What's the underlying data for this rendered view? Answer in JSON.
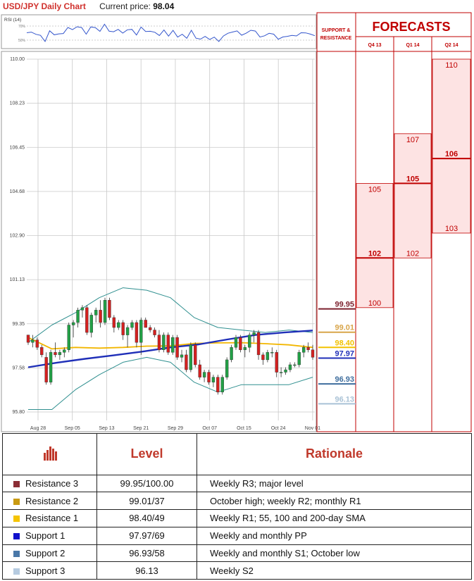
{
  "header": {
    "title": "USD/JPY Daily Chart",
    "price_label": "Current price:",
    "price_value": "98.04"
  },
  "rsi": {
    "label": "RSI (14)",
    "ticks": [
      "70%",
      "50%"
    ]
  },
  "forecast_panel": {
    "support_resistance_label": [
      "SUPPORT &",
      "RESISTANCE"
    ],
    "forecasts_title": "FORECASTS",
    "quarters": [
      "Q4 13",
      "Q1 14",
      "Q2 14"
    ]
  },
  "chart_data": {
    "type": "candlestick",
    "title": "USD/JPY Daily Chart",
    "ylim": [
      95.8,
      110.0
    ],
    "y_ticks": [
      "110.00",
      "108.23",
      "106.45",
      "104.68",
      "102.90",
      "101.13",
      "99.35",
      "97.58",
      "95.80"
    ],
    "x_ticks": [
      "Aug 28",
      "Sep 05",
      "Sep 13",
      "Sep 21",
      "Sep 29",
      "Oct 07",
      "Oct 15",
      "Oct 24",
      "Nov 01"
    ],
    "candles": [
      [
        98.9,
        98.9,
        98.5,
        98.6
      ],
      [
        98.6,
        98.9,
        98.4,
        98.7
      ],
      [
        98.7,
        98.8,
        98.3,
        98.4
      ],
      [
        98.4,
        98.5,
        98.0,
        98.1
      ],
      [
        98.0,
        98.2,
        96.9,
        97.0
      ],
      [
        97.0,
        98.3,
        96.9,
        98.2
      ],
      [
        98.2,
        98.6,
        98.0,
        98.1
      ],
      [
        98.1,
        98.3,
        97.9,
        98.2
      ],
      [
        98.2,
        98.4,
        98.0,
        98.3
      ],
      [
        98.3,
        99.4,
        98.2,
        99.3
      ],
      [
        99.3,
        99.5,
        98.8,
        99.4
      ],
      [
        99.4,
        100.0,
        99.2,
        99.9
      ],
      [
        99.9,
        100.1,
        99.6,
        100.0
      ],
      [
        100.0,
        100.1,
        98.9,
        99.0
      ],
      [
        99.0,
        99.8,
        98.8,
        99.7
      ],
      [
        99.7,
        100.0,
        99.4,
        99.9
      ],
      [
        99.9,
        100.3,
        99.2,
        99.4
      ],
      [
        99.4,
        100.4,
        99.3,
        100.3
      ],
      [
        100.3,
        100.4,
        99.5,
        99.6
      ],
      [
        99.6,
        99.7,
        99.0,
        99.2
      ],
      [
        99.2,
        99.5,
        99.1,
        99.4
      ],
      [
        99.4,
        99.5,
        98.7,
        98.9
      ],
      [
        98.9,
        99.3,
        98.4,
        99.2
      ],
      [
        99.2,
        99.5,
        99.1,
        99.4
      ],
      [
        99.4,
        99.5,
        98.4,
        98.6
      ],
      [
        98.6,
        99.6,
        98.1,
        99.5
      ],
      [
        99.5,
        99.6,
        99.2,
        99.2
      ],
      [
        99.2,
        99.3,
        99.0,
        99.1
      ],
      [
        99.1,
        99.2,
        98.8,
        98.9
      ],
      [
        98.9,
        99.1,
        98.2,
        98.3
      ],
      [
        98.3,
        99.0,
        98.2,
        98.9
      ],
      [
        98.9,
        99.0,
        98.1,
        98.2
      ],
      [
        98.2,
        98.9,
        98.1,
        98.8
      ],
      [
        98.8,
        98.9,
        97.9,
        98.0
      ],
      [
        98.0,
        98.3,
        97.8,
        98.1
      ],
      [
        98.1,
        98.3,
        97.4,
        97.5
      ],
      [
        97.5,
        98.6,
        97.4,
        98.5
      ],
      [
        98.5,
        98.6,
        97.6,
        97.7
      ],
      [
        97.7,
        97.9,
        97.1,
        97.2
      ],
      [
        97.2,
        97.5,
        97.0,
        97.4
      ],
      [
        97.4,
        97.5,
        96.9,
        97.0
      ],
      [
        97.0,
        97.3,
        96.8,
        97.2
      ],
      [
        97.2,
        97.3,
        96.5,
        96.6
      ],
      [
        96.6,
        97.3,
        96.5,
        97.2
      ],
      [
        97.2,
        98.0,
        97.1,
        97.9
      ],
      [
        97.9,
        98.5,
        97.8,
        98.4
      ],
      [
        98.4,
        98.9,
        98.3,
        98.8
      ],
      [
        98.8,
        98.9,
        98.2,
        98.3
      ],
      [
        98.3,
        98.5,
        98.0,
        98.4
      ],
      [
        98.4,
        99.0,
        98.2,
        98.9
      ],
      [
        98.9,
        99.1,
        98.6,
        99.0
      ],
      [
        99.0,
        99.1,
        97.9,
        98.1
      ],
      [
        98.1,
        98.2,
        97.7,
        97.9
      ],
      [
        97.9,
        98.3,
        97.8,
        98.2
      ],
      [
        98.2,
        98.4,
        98.0,
        98.2
      ],
      [
        98.2,
        98.3,
        97.2,
        97.4
      ],
      [
        97.4,
        97.6,
        97.2,
        97.4
      ],
      [
        97.4,
        97.6,
        97.3,
        97.5
      ],
      [
        97.5,
        97.8,
        97.4,
        97.7
      ],
      [
        97.7,
        97.8,
        97.6,
        97.7
      ],
      [
        97.7,
        98.3,
        97.6,
        98.2
      ],
      [
        98.2,
        98.5,
        98.0,
        98.4
      ],
      [
        98.4,
        98.6,
        98.2,
        98.3
      ],
      [
        98.3,
        98.5,
        97.9,
        98.0
      ]
    ],
    "lines": {
      "ma_blue": [
        97.6,
        97.78,
        97.94,
        98.08,
        98.23,
        98.4,
        98.52,
        98.72,
        98.9,
        99.0,
        99.08
      ],
      "ma_yellow": [
        98.8,
        98.34,
        98.4,
        98.37,
        98.4,
        98.45,
        98.46,
        98.56,
        98.58,
        98.59,
        98.55,
        98.5,
        98.4
      ],
      "bb_upper": [
        98.6,
        99.3,
        99.8,
        100.4,
        100.8,
        100.7,
        100.4,
        99.6,
        99.2,
        99.1,
        99.0,
        99.1,
        99.0
      ],
      "bb_lower": [
        95.9,
        95.9,
        96.7,
        97.3,
        97.8,
        98.0,
        97.8,
        97.0,
        96.6,
        96.9,
        96.9,
        96.9,
        97.2
      ]
    }
  },
  "levels": [
    {
      "id": "r3",
      "value": 99.95,
      "label": "99.95",
      "color": "#7b1f2c"
    },
    {
      "id": "r2",
      "value": 99.01,
      "label": "99.01",
      "color": "#d8a54a"
    },
    {
      "id": "r1",
      "value": 98.4,
      "label": "98.40",
      "color": "#f2c200"
    },
    {
      "id": "s1",
      "value": 97.97,
      "label": "97.97",
      "color": "#1f2fb8"
    },
    {
      "id": "s2",
      "value": 96.93,
      "label": "96.93",
      "color": "#3f6e9e"
    },
    {
      "id": "s3",
      "value": 96.13,
      "label": "96.13",
      "color": "#a9c2d6"
    }
  ],
  "forecasts": [
    {
      "quarter": "Q4 13",
      "low": "100",
      "mid": "102",
      "high": "105",
      "low_v": 100,
      "mid_v": 102,
      "high_v": 105
    },
    {
      "quarter": "Q1 14",
      "low": "102",
      "mid": "105",
      "high": "107",
      "low_v": 102,
      "mid_v": 105,
      "high_v": 107
    },
    {
      "quarter": "Q2 14",
      "low": "103",
      "mid": "106",
      "high": "110",
      "low_v": 103,
      "mid_v": 106,
      "high_v": 110
    }
  ],
  "table": {
    "headers": {
      "level": "Level",
      "rationale": "Rationale"
    },
    "rows": [
      {
        "name": "Resistance 3",
        "level": "99.95/100.00",
        "rationale": "Weekly R3; major level",
        "color": "#8b2d35"
      },
      {
        "name": "Resistance 2",
        "level": "99.01/37",
        "rationale": "October high; weekly R2; monthly R1",
        "color": "#c99a12"
      },
      {
        "name": "Resistance 1",
        "level": "98.40/49",
        "rationale": "Weekly R1; 55, 100 and 200-day SMA",
        "color": "#f5c400"
      },
      {
        "name": "Support 1",
        "level": "97.97/69",
        "rationale": "Weekly and monthly PP",
        "color": "#1010cc"
      },
      {
        "name": "Support 2",
        "level": "96.93/58",
        "rationale": "Weekly and monthly S1;  October low",
        "color": "#4a78a8"
      },
      {
        "name": "Support 3",
        "level": "96.13",
        "rationale": "Weekly S2",
        "color": "#b6cbe0"
      }
    ]
  },
  "colors": {
    "up": "#22a046",
    "down": "#d42020",
    "forecast_fill": "#fde3e3",
    "forecast_line": "#c00000",
    "grid": "#c8c8c8"
  }
}
